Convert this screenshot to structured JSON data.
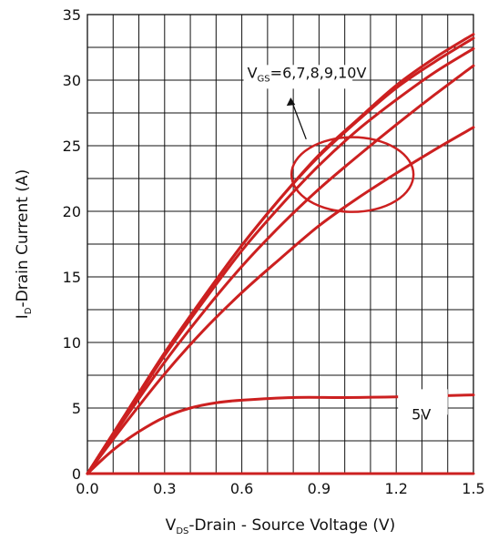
{
  "chart_data": {
    "type": "line",
    "xlabel": {
      "main": "V",
      "sub": "DS",
      "rest": "-Drain - Source Voltage (V)"
    },
    "ylabel": {
      "main": "I",
      "sub": "D",
      "rest": "-Drain Current (A)"
    },
    "xlim": [
      0,
      1.5
    ],
    "ylim": [
      0,
      35
    ],
    "xticks": [
      "0.0",
      "0.3",
      "0.6",
      "0.9",
      "1.2",
      "1.5"
    ],
    "yticks": [
      "0",
      "5",
      "10",
      "15",
      "20",
      "25",
      "30",
      "35"
    ],
    "grid": true,
    "line_color": "#cc2020",
    "annotations": {
      "vgs_group": {
        "main": "V",
        "sub": "GS",
        "rest": "=6,7,8,9,10V"
      },
      "low_curve": "5V"
    },
    "series": [
      {
        "x": [
          0,
          0.15,
          0.3,
          0.45,
          0.6,
          0.75,
          0.9,
          1.05,
          1.2,
          1.35,
          1.5
        ],
        "y": [
          0,
          4.6,
          9.2,
          13.4,
          17.4,
          21.0,
          24.3,
          27.0,
          29.6,
          31.7,
          33.5
        ]
      },
      {
        "x": [
          0,
          0.15,
          0.3,
          0.45,
          0.6,
          0.75,
          0.9,
          1.05,
          1.2,
          1.35,
          1.5
        ],
        "y": [
          0,
          4.6,
          9.2,
          13.4,
          17.4,
          21.0,
          24.2,
          26.9,
          29.4,
          31.4,
          33.2
        ]
      },
      {
        "x": [
          0,
          0.15,
          0.3,
          0.45,
          0.6,
          0.75,
          0.9,
          1.05,
          1.2,
          1.35,
          1.5
        ],
        "y": [
          0,
          4.5,
          9.0,
          13.1,
          17.0,
          20.4,
          23.5,
          26.2,
          28.5,
          30.6,
          32.4
        ]
      },
      {
        "x": [
          0,
          0.15,
          0.3,
          0.45,
          0.6,
          0.75,
          0.9,
          1.05,
          1.2,
          1.35,
          1.5
        ],
        "y": [
          0,
          4.3,
          8.5,
          12.3,
          15.8,
          18.9,
          21.7,
          24.2,
          26.6,
          28.9,
          31.1
        ]
      },
      {
        "x": [
          0,
          0.15,
          0.3,
          0.45,
          0.6,
          0.75,
          0.9,
          1.05,
          1.2,
          1.35,
          1.5
        ],
        "y": [
          0,
          3.9,
          7.6,
          10.9,
          13.8,
          16.4,
          18.9,
          21.0,
          22.9,
          24.7,
          26.4
        ]
      },
      {
        "x": [
          0,
          0.1,
          0.2,
          0.3,
          0.4,
          0.5,
          0.6,
          0.8,
          1.0,
          1.2,
          1.5
        ],
        "y": [
          0,
          1.8,
          3.2,
          4.3,
          5.0,
          5.4,
          5.6,
          5.8,
          5.8,
          5.85,
          6.0
        ]
      },
      {
        "x": [
          0,
          1.5
        ],
        "y": [
          0,
          0
        ]
      }
    ]
  }
}
